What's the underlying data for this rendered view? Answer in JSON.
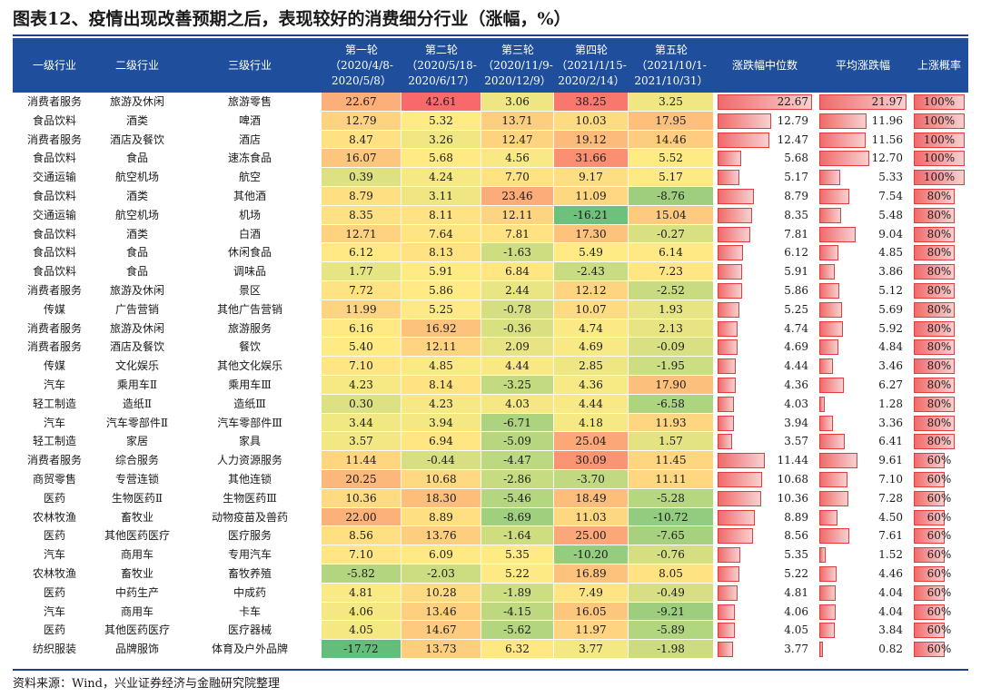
{
  "title": "图表12、疫情出现改善预期之后，表现较好的消费细分行业（涨幅，%）",
  "source": "资料来源：Wind，兴业证券经济与金融研究院整理",
  "colors": {
    "header_bg": "#1f4e9c",
    "heat_low": "#63be7b",
    "heat_mid": "#ffeb84",
    "heat_high": "#f8696b",
    "bar_fill": "#f06a6a"
  },
  "chart_data": {
    "type": "table",
    "columns": [
      {
        "label": "一级行业"
      },
      {
        "label": "二级行业"
      },
      {
        "label": "三级行业"
      },
      {
        "label": "第一轮",
        "sub": "（2020/4/8-",
        "sub2": "2020/5/8）"
      },
      {
        "label": "第二轮",
        "sub": "（2020/5/18-",
        "sub2": "2020/6/17）"
      },
      {
        "label": "第三轮",
        "sub": "（2020/11/9-",
        "sub2": "2020/12/9）"
      },
      {
        "label": "第四轮",
        "sub": "（2021/1/15-",
        "sub2": "2020/2/14）"
      },
      {
        "label": "第五轮",
        "sub": "（2021/10/1-",
        "sub2": "2021/10/31）"
      },
      {
        "label": "涨跌幅中位数"
      },
      {
        "label": "平均涨跌幅"
      },
      {
        "label": "上涨概率"
      }
    ],
    "rows": [
      {
        "l1": "消费者服务",
        "l2": "旅游及休闲",
        "l3": "旅游零售",
        "rounds": [
          "22.67",
          "42.61",
          "3.06",
          "38.25",
          "3.25"
        ],
        "median": "22.67",
        "avg": "21.97",
        "prob": "100%"
      },
      {
        "l1": "食品饮料",
        "l2": "酒类",
        "l3": "啤酒",
        "rounds": [
          "12.79",
          "5.32",
          "13.71",
          "10.03",
          "17.95"
        ],
        "median": "12.79",
        "avg": "11.96",
        "prob": "100%"
      },
      {
        "l1": "消费者服务",
        "l2": "酒店及餐饮",
        "l3": "酒店",
        "rounds": [
          "8.47",
          "3.26",
          "12.47",
          "19.12",
          "14.46"
        ],
        "median": "12.47",
        "avg": "11.56",
        "prob": "100%"
      },
      {
        "l1": "食品饮料",
        "l2": "食品",
        "l3": "速冻食品",
        "rounds": [
          "16.07",
          "5.68",
          "4.56",
          "31.66",
          "5.52"
        ],
        "median": "5.68",
        "avg": "12.70",
        "prob": "100%"
      },
      {
        "l1": "交通运输",
        "l2": "航空机场",
        "l3": "航空",
        "rounds": [
          "0.39",
          "4.24",
          "7.70",
          "9.17",
          "5.17"
        ],
        "median": "5.17",
        "avg": "5.33",
        "prob": "100%"
      },
      {
        "l1": "食品饮料",
        "l2": "酒类",
        "l3": "其他酒",
        "rounds": [
          "8.79",
          "3.11",
          "23.46",
          "11.09",
          "-8.76"
        ],
        "median": "8.79",
        "avg": "7.54",
        "prob": "80%"
      },
      {
        "l1": "交通运输",
        "l2": "航空机场",
        "l3": "机场",
        "rounds": [
          "8.35",
          "8.11",
          "12.11",
          "-16.21",
          "15.04"
        ],
        "median": "8.35",
        "avg": "5.48",
        "prob": "80%"
      },
      {
        "l1": "食品饮料",
        "l2": "酒类",
        "l3": "白酒",
        "rounds": [
          "12.71",
          "7.64",
          "7.81",
          "17.30",
          "-0.27"
        ],
        "median": "7.81",
        "avg": "9.04",
        "prob": "80%"
      },
      {
        "l1": "食品饮料",
        "l2": "食品",
        "l3": "休闲食品",
        "rounds": [
          "6.12",
          "8.13",
          "-1.63",
          "5.49",
          "6.14"
        ],
        "median": "6.12",
        "avg": "4.85",
        "prob": "80%"
      },
      {
        "l1": "食品饮料",
        "l2": "食品",
        "l3": "调味品",
        "rounds": [
          "1.77",
          "5.91",
          "6.84",
          "-2.43",
          "7.23"
        ],
        "median": "5.91",
        "avg": "3.86",
        "prob": "80%"
      },
      {
        "l1": "消费者服务",
        "l2": "旅游及休闲",
        "l3": "景区",
        "rounds": [
          "7.72",
          "5.86",
          "2.44",
          "12.12",
          "-2.52"
        ],
        "median": "5.86",
        "avg": "5.12",
        "prob": "80%"
      },
      {
        "l1": "传媒",
        "l2": "广告营销",
        "l3": "其他广告营销",
        "rounds": [
          "11.99",
          "5.25",
          "-0.78",
          "10.07",
          "1.93"
        ],
        "median": "5.25",
        "avg": "5.69",
        "prob": "80%"
      },
      {
        "l1": "消费者服务",
        "l2": "旅游及休闲",
        "l3": "旅游服务",
        "rounds": [
          "6.16",
          "16.92",
          "-0.36",
          "4.74",
          "2.13"
        ],
        "median": "4.74",
        "avg": "5.92",
        "prob": "80%"
      },
      {
        "l1": "消费者服务",
        "l2": "酒店及餐饮",
        "l3": "餐饮",
        "rounds": [
          "5.40",
          "12.11",
          "2.09",
          "4.69",
          "-0.09"
        ],
        "median": "4.69",
        "avg": "4.84",
        "prob": "80%"
      },
      {
        "l1": "传媒",
        "l2": "文化娱乐",
        "l3": "其他文化娱乐",
        "rounds": [
          "7.10",
          "4.85",
          "4.44",
          "2.85",
          "-1.95"
        ],
        "median": "4.44",
        "avg": "3.46",
        "prob": "80%"
      },
      {
        "l1": "汽车",
        "l2": "乘用车Ⅱ",
        "l3": "乘用车Ⅲ",
        "rounds": [
          "4.23",
          "8.14",
          "-3.25",
          "4.36",
          "17.90"
        ],
        "median": "4.36",
        "avg": "6.27",
        "prob": "80%"
      },
      {
        "l1": "轻工制造",
        "l2": "造纸Ⅱ",
        "l3": "造纸Ⅲ",
        "rounds": [
          "0.30",
          "4.23",
          "4.03",
          "4.44",
          "-6.58"
        ],
        "median": "4.03",
        "avg": "1.28",
        "prob": "80%"
      },
      {
        "l1": "汽车",
        "l2": "汽车零部件Ⅱ",
        "l3": "汽车零部件Ⅲ",
        "rounds": [
          "3.44",
          "3.94",
          "-6.71",
          "4.18",
          "11.93"
        ],
        "median": "3.94",
        "avg": "3.36",
        "prob": "80%"
      },
      {
        "l1": "轻工制造",
        "l2": "家居",
        "l3": "家具",
        "rounds": [
          "3.57",
          "6.94",
          "-5.09",
          "25.04",
          "1.57"
        ],
        "median": "3.57",
        "avg": "6.41",
        "prob": "80%"
      },
      {
        "l1": "消费者服务",
        "l2": "综合服务",
        "l3": "人力资源服务",
        "rounds": [
          "11.44",
          "-0.44",
          "-4.47",
          "30.09",
          "11.45"
        ],
        "median": "11.44",
        "avg": "9.61",
        "prob": "60%"
      },
      {
        "l1": "商贸零售",
        "l2": "专营连锁",
        "l3": "其他连锁",
        "rounds": [
          "20.25",
          "10.68",
          "-2.86",
          "-3.70",
          "11.11"
        ],
        "median": "10.68",
        "avg": "7.10",
        "prob": "60%"
      },
      {
        "l1": "医药",
        "l2": "生物医药Ⅱ",
        "l3": "生物医药Ⅲ",
        "rounds": [
          "10.36",
          "18.30",
          "-5.46",
          "18.49",
          "-5.28"
        ],
        "median": "10.36",
        "avg": "7.28",
        "prob": "60%"
      },
      {
        "l1": "农林牧渔",
        "l2": "畜牧业",
        "l3": "动物疫苗及兽药",
        "rounds": [
          "22.00",
          "8.89",
          "-8.69",
          "11.03",
          "-10.72"
        ],
        "median": "8.89",
        "avg": "4.50",
        "prob": "60%"
      },
      {
        "l1": "医药",
        "l2": "其他医药医疗",
        "l3": "医疗服务",
        "rounds": [
          "8.56",
          "13.76",
          "-1.64",
          "25.00",
          "-7.65"
        ],
        "median": "8.56",
        "avg": "7.61",
        "prob": "60%"
      },
      {
        "l1": "汽车",
        "l2": "商用车",
        "l3": "专用汽车",
        "rounds": [
          "7.10",
          "6.09",
          "5.35",
          "-10.20",
          "-0.76"
        ],
        "median": "5.35",
        "avg": "1.52",
        "prob": "60%"
      },
      {
        "l1": "农林牧渔",
        "l2": "畜牧业",
        "l3": "畜牧养殖",
        "rounds": [
          "-5.82",
          "-2.03",
          "5.22",
          "16.89",
          "8.05"
        ],
        "median": "5.22",
        "avg": "4.46",
        "prob": "60%"
      },
      {
        "l1": "医药",
        "l2": "中药生产",
        "l3": "中成药",
        "rounds": [
          "4.81",
          "10.28",
          "-1.89",
          "7.49",
          "-0.49"
        ],
        "median": "4.81",
        "avg": "4.04",
        "prob": "60%"
      },
      {
        "l1": "汽车",
        "l2": "商用车",
        "l3": "卡车",
        "rounds": [
          "4.06",
          "13.46",
          "-4.15",
          "16.05",
          "-9.21"
        ],
        "median": "4.06",
        "avg": "4.04",
        "prob": "60%"
      },
      {
        "l1": "医药",
        "l2": "其他医药医疗",
        "l3": "医疗器械",
        "rounds": [
          "4.05",
          "14.67",
          "-5.62",
          "11.97",
          "-5.89"
        ],
        "median": "4.05",
        "avg": "3.84",
        "prob": "60%"
      },
      {
        "l1": "纺织服装",
        "l2": "品牌服饰",
        "l3": "体育及户外品牌",
        "rounds": [
          "-17.72",
          "13.73",
          "6.32",
          "3.77",
          "-1.98"
        ],
        "median": "3.77",
        "avg": "0.82",
        "prob": "60%"
      }
    ]
  }
}
